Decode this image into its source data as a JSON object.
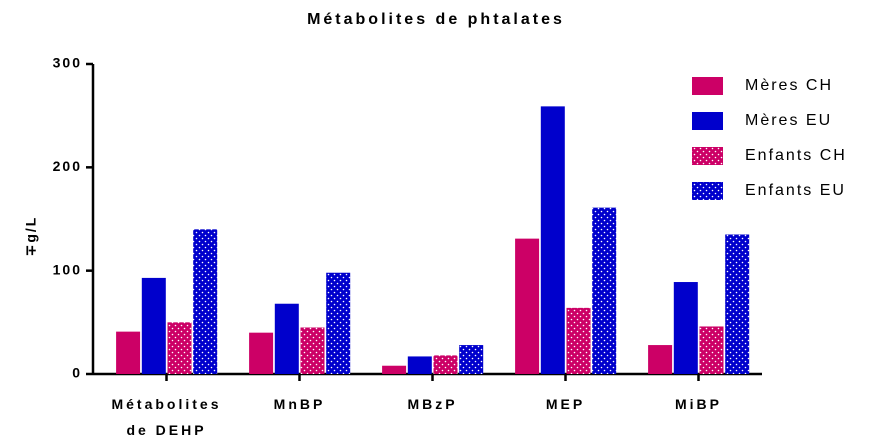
{
  "chart_data": {
    "type": "bar",
    "title": "Métabolites de phtalates",
    "y_label": "∓g/L",
    "categories": [
      "Métabolites de DEHP",
      "MnBP",
      "MBzP",
      "MEP",
      "MiBP"
    ],
    "series": [
      {
        "name": "Mères CH",
        "color": "#cc0066",
        "values": [
          41,
          40,
          8,
          131,
          28
        ]
      },
      {
        "name": "Mères EU",
        "color": "#0000cc",
        "values": [
          93,
          68,
          17,
          259,
          89
        ]
      },
      {
        "name": "Enfants CH",
        "color": "#cc0066",
        "pattern": "dots",
        "values": [
          50,
          45,
          18,
          64,
          46
        ]
      },
      {
        "name": "Enfants EU",
        "color": "#0000cc",
        "pattern": "dots",
        "values": [
          140,
          98,
          28,
          161,
          135
        ]
      }
    ],
    "ylim": [
      0,
      300
    ],
    "yticks": [
      0,
      100,
      200,
      300
    ],
    "grid": false,
    "legend": "upper right"
  }
}
